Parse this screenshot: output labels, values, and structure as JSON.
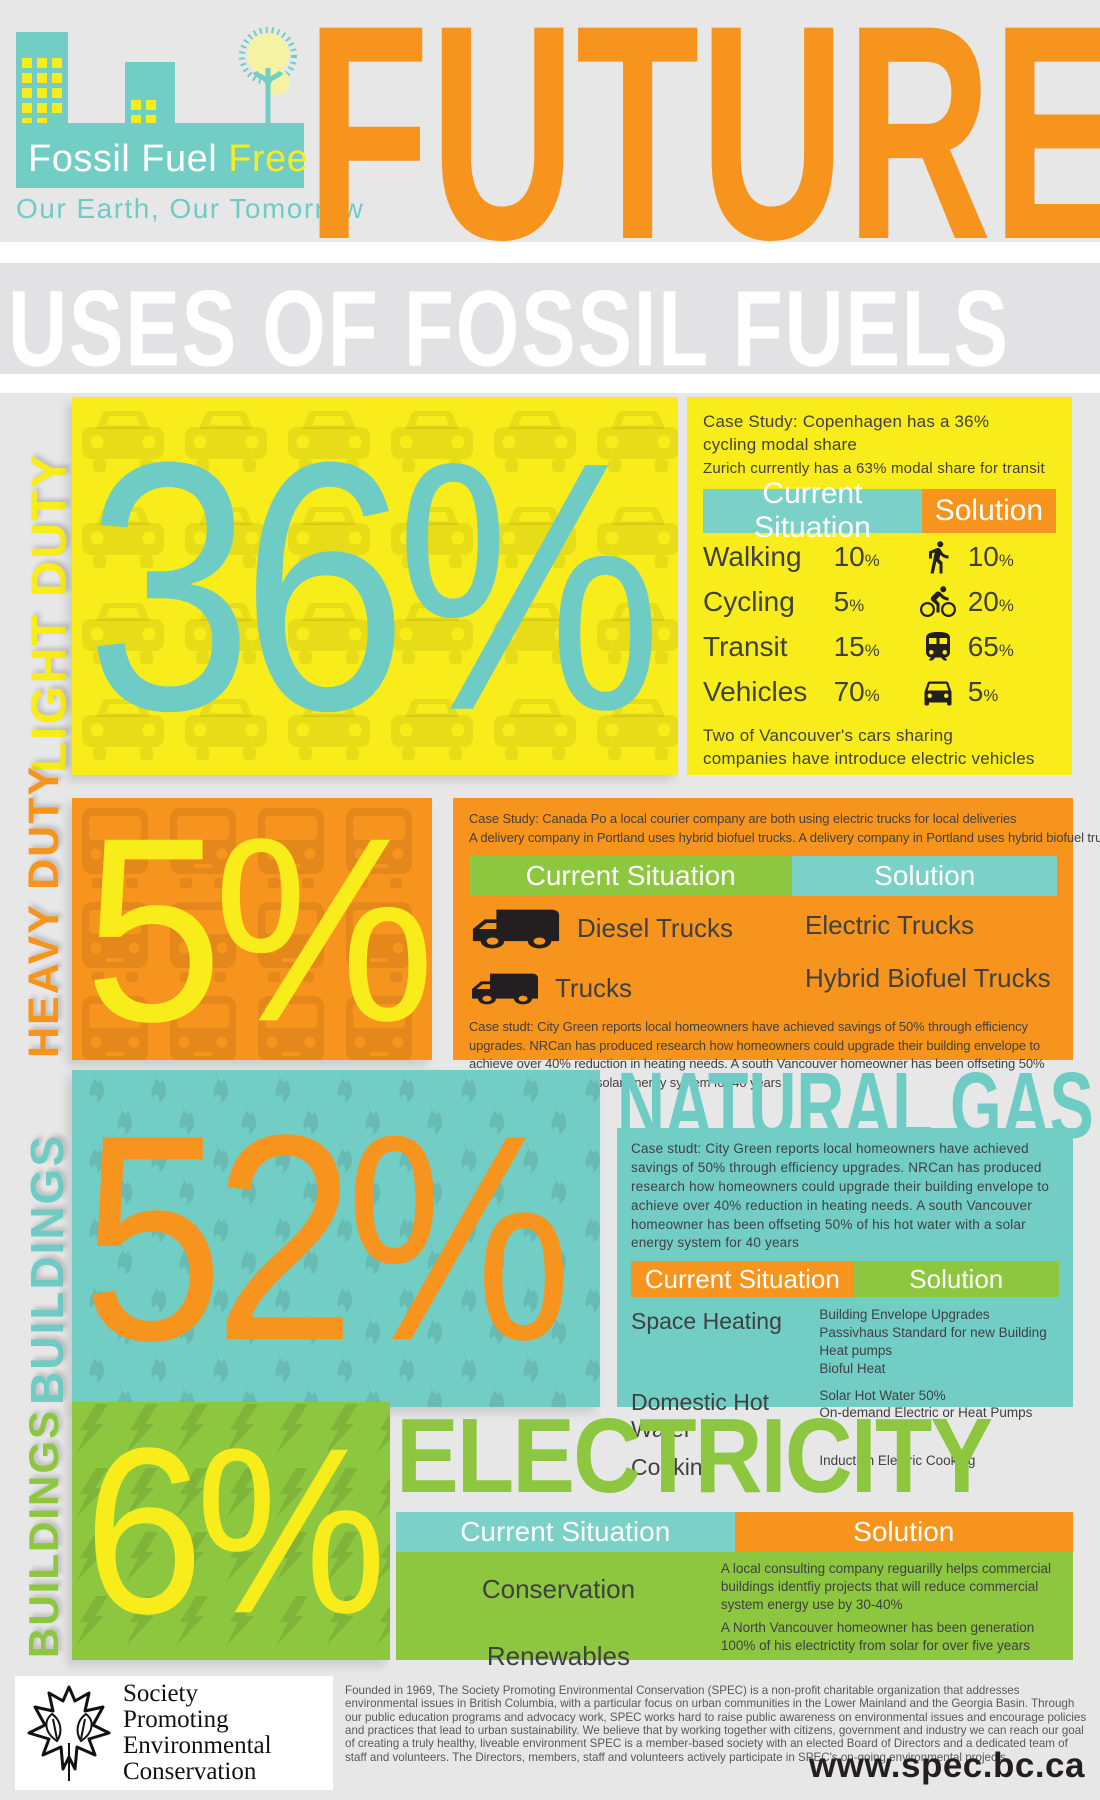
{
  "misc": {
    "pct": "%"
  },
  "colors": {
    "teal": "#72cdc4",
    "orange": "#f7941e",
    "yellow": "#f8ed1a",
    "green": "#8dc63f",
    "background_gray": "#e7e7e8",
    "dark_text": "#414042"
  },
  "header": {
    "logo_title_white": "Fossil Fuel ",
    "logo_title_accent": "Free",
    "tagline": "Our Earth, Our Tomorrow",
    "big_title": "FUTURE",
    "logo_icons": [
      "city-buildings-icon",
      "tree-icon"
    ]
  },
  "banner": {
    "title": "USES OF FOSSIL FUELS"
  },
  "sections": [
    {
      "side_label": "LIGHT DUTY",
      "percent": "36",
      "case_study_1": "Case Study: Copenhagen has a 36% cycling modal share",
      "case_study_2": "Zurich currently has a 63% modal share for transit",
      "col_current": "Current Situation",
      "col_solution": "Solution",
      "rows": [
        {
          "label": "Walking",
          "current": "10",
          "icon": "pedestrian-icon",
          "solution": "10"
        },
        {
          "label": "Cycling",
          "current": "5",
          "icon": "bicycle-icon",
          "solution": "20"
        },
        {
          "label": "Transit",
          "current": "15",
          "icon": "train-icon",
          "solution": "65"
        },
        {
          "label": "Vehicles",
          "current": "70",
          "icon": "car-icon",
          "solution": "5"
        }
      ],
      "footnote": "Two of Vancouver's cars sharing companies have introduce electric vehicles"
    },
    {
      "side_label": "HEAVY DUTY",
      "percent": "5",
      "case_study_1": "Case Study:  Canada Po  a local courier company are both using electric trucks for local deliveries",
      "case_study_2": "A delivery company in Portland uses hybrid biofuel trucks. A delivery company in Portland uses hybrid biofuel trucks",
      "col_current": "Current Situation",
      "col_solution": "Solution",
      "current_items": [
        {
          "label": "Diesel Trucks",
          "icon": "truck-icon"
        },
        {
          "label": "Trucks",
          "icon": "truck-icon"
        }
      ],
      "solution_items": [
        "Electric Trucks",
        "Hybrid Biofuel Trucks"
      ],
      "footnote": "Case studt: City Green reports local homeowners have achieved savings of 50% through efficiency upgrades. NRCan has produced research how homeowners could upgrade their building envelope to achieve over 40% reduction in heating needs. A south Vancouver homeowner has been offseting 50% of his hot water with a solar energy system for 40 years"
    },
    {
      "side_label": "BUILDINGS",
      "percent": "52",
      "title": "NATURAL GAS",
      "case_study": "Case studt: City Green reports local homeowners have achieved savings of 50% through efficiency upgrades. NRCan has produced research how homeowners could upgrade their building envelope to achieve over 40% reduction in heating needs. A south Vancouver homeowner has been offseting 50% of his hot water with a solar energy system for 40 years",
      "col_current": "Current Situation",
      "col_solution": "Solution",
      "rows": [
        {
          "label": "Space Heating",
          "solutions": [
            "Building Envelope Upgrades",
            "Passivhaus Standard for new Building",
            "Heat pumps",
            "Bioful Heat"
          ]
        },
        {
          "label": "Domestic Hot Water",
          "solutions": [
            "Solar Hot Water 50%",
            "On-demand Electric or Heat Pumps"
          ]
        },
        {
          "label": "Cooking",
          "solutions": [
            "Induction Electric Cooking"
          ]
        }
      ]
    },
    {
      "side_label": "BUILDINGS",
      "percent": "6",
      "title": "ELECTRICITY",
      "col_current": "Current Situation",
      "col_solution": "Solution",
      "rows": [
        {
          "label": "Conservation",
          "solution": "A local consulting company reguarilly helps commercial buildings identfiy projects that will reduce commercial system energy use by 30-40%"
        },
        {
          "label": "Renewables",
          "solution": "A North Vancouver homeowner has been generation 100% of his electrictity from solar for over five years"
        }
      ]
    }
  ],
  "footer": {
    "org_name_lines": [
      "Society",
      "Promoting",
      "Environmental",
      "Conservation"
    ],
    "about": "Founded in 1969, The Society Promoting Environmental Conservation (SPEC) is a non-profit charitable organization that addresses environmental issues in British Columbia, with a particular focus on urban communities in the Lower Mainland and the Georgia Basin. Through our public education programs and advocacy work, SPEC works hard to raise public awareness on environmental issues and encourage policies and practices that lead to urban sustainability. We believe that by working together with citizens, government and industry we can reach our goal of creating a truly healthy, liveable environment SPEC is a member-based society with an elected Board of Directors and a dedicated team of staff and volunteers. The Directors, members, staff and volunteers actively participate in SPEC's on-going environmental projects.",
    "website": "www.spec.bc.ca"
  }
}
